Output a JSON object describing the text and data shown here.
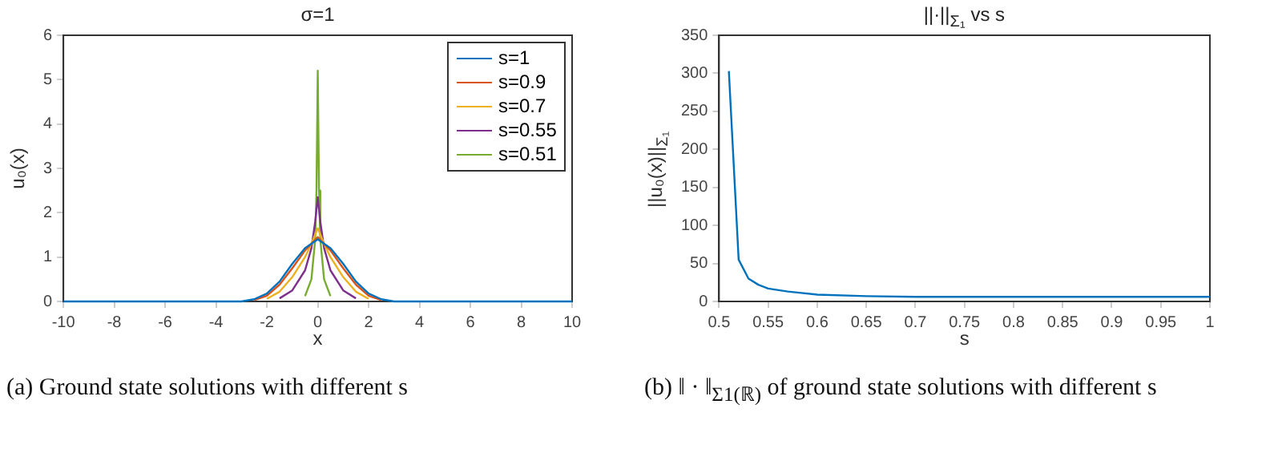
{
  "chart_data": [
    {
      "type": "line",
      "title": "σ=1",
      "xlabel": "x",
      "ylabel": "u₀(x)",
      "xlim": [
        -10,
        10
      ],
      "xticks": [
        -10,
        -8,
        -6,
        -4,
        -2,
        0,
        2,
        4,
        6,
        8,
        10
      ],
      "ylim": [
        0,
        6
      ],
      "yticks": [
        0,
        1,
        2,
        3,
        4,
        5,
        6
      ],
      "grid": false,
      "legend": "top right",
      "marker": "none",
      "line_style": "solid",
      "annotations": [
        "(a) Ground state solutions with different s"
      ],
      "series": [
        {
          "name": "s=1",
          "color": "#0072bd",
          "x": [
            -10,
            -3,
            -2.5,
            -2,
            -1.5,
            -1,
            -0.5,
            0,
            0.5,
            1,
            1.5,
            2,
            2.5,
            3,
            10
          ],
          "values": [
            0,
            0,
            0.05,
            0.18,
            0.45,
            0.85,
            1.2,
            1.4,
            1.2,
            0.85,
            0.45,
            0.18,
            0.05,
            0,
            0
          ]
        },
        {
          "name": "s=0.9",
          "color": "#d95319",
          "x": [
            -2.5,
            -2,
            -1.5,
            -1,
            -0.5,
            0,
            0.5,
            1,
            1.5,
            2,
            2.5
          ],
          "values": [
            0.03,
            0.13,
            0.38,
            0.75,
            1.15,
            1.45,
            1.15,
            0.75,
            0.38,
            0.13,
            0.03
          ]
        },
        {
          "name": "s=0.7",
          "color": "#edb120",
          "x": [
            -2,
            -1.5,
            -1,
            -0.5,
            -0.25,
            0,
            0.25,
            0.5,
            1,
            1.5,
            2
          ],
          "values": [
            0.06,
            0.22,
            0.55,
            1.0,
            1.3,
            1.65,
            1.3,
            1.0,
            0.55,
            0.22,
            0.06
          ]
        },
        {
          "name": "s=0.55",
          "color": "#7e2f8e",
          "x": [
            -1.5,
            -1,
            -0.5,
            -0.25,
            -0.1,
            0,
            0.1,
            0.25,
            0.5,
            1,
            1.5
          ],
          "values": [
            0.07,
            0.25,
            0.7,
            1.2,
            1.8,
            2.35,
            1.8,
            1.2,
            0.7,
            0.25,
            0.07
          ]
        },
        {
          "name": "s=0.51",
          "color": "#77ac30",
          "x": [
            -0.5,
            -0.25,
            -0.1,
            -0.05,
            0,
            0.05,
            0.1,
            0.25,
            0.5
          ],
          "values": [
            0.12,
            0.5,
            1.4,
            2.5,
            5.2,
            2.5,
            1.4,
            0.5,
            0.12
          ]
        }
      ]
    },
    {
      "type": "line",
      "title": "||·||$_{Σ₁}$ vs s",
      "xlabel": "s",
      "ylabel": "||u₀(x)||$_{Σ₁}$",
      "xlim": [
        0.5,
        1
      ],
      "xticks": [
        0.5,
        0.55,
        0.6,
        0.65,
        0.7,
        0.75,
        0.8,
        0.85,
        0.9,
        0.95,
        1
      ],
      "ylim": [
        0,
        350
      ],
      "yticks": [
        0,
        50,
        100,
        150,
        200,
        250,
        300,
        350
      ],
      "grid": false,
      "marker": "none",
      "line_style": "solid",
      "annotations": [
        "(b) ‖ · ‖$_{Σ1(ℝ)}$ of ground state solutions with different s"
      ],
      "series": [
        {
          "color": "#0072bd",
          "x": [
            0.51,
            0.52,
            0.53,
            0.54,
            0.55,
            0.57,
            0.6,
            0.65,
            0.7,
            0.8,
            0.9,
            1
          ],
          "values": [
            303,
            55,
            30,
            22,
            17,
            13,
            9,
            7,
            6,
            6,
            6,
            6
          ]
        }
      ]
    }
  ]
}
